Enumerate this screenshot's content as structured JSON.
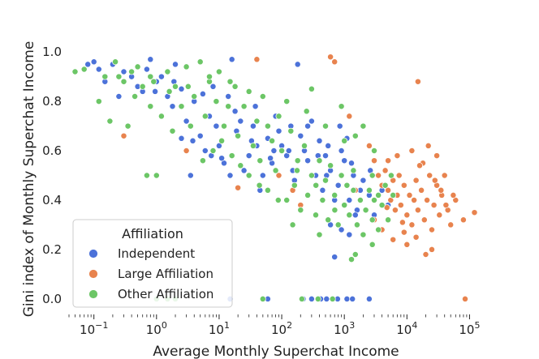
{
  "chart_data": {
    "type": "scatter",
    "xlabel": "Average Monthly Superchat Income",
    "ylabel": "Gini index of Monthly Superchat Income",
    "x_scale": "log",
    "xlim": [
      0.04,
      150000
    ],
    "ylim": [
      -0.03,
      1.03
    ],
    "x_ticks": [
      {
        "value": 0.1,
        "base": "10",
        "exp": "−1"
      },
      {
        "value": 1,
        "base": "10",
        "exp": "0"
      },
      {
        "value": 10,
        "base": "10",
        "exp": "1"
      },
      {
        "value": 100,
        "base": "10",
        "exp": "2"
      },
      {
        "value": 1000,
        "base": "10",
        "exp": "3"
      },
      {
        "value": 10000,
        "base": "10",
        "exp": "4"
      },
      {
        "value": 100000,
        "base": "10",
        "exp": "5"
      }
    ],
    "y_ticks": [
      {
        "value": 0.0,
        "label": "0.0"
      },
      {
        "value": 0.2,
        "label": "0.2"
      },
      {
        "value": 0.4,
        "label": "0.4"
      },
      {
        "value": 0.6,
        "label": "0.6"
      },
      {
        "value": 0.8,
        "label": "0.8"
      },
      {
        "value": 1.0,
        "label": "1.0"
      }
    ],
    "grid": false,
    "legend": {
      "title": "Affiliation",
      "placement": "bottom-left",
      "entries": [
        "Independent",
        "Large Affiliation",
        "Other Affiliation"
      ]
    },
    "series": [
      {
        "name": "Independent",
        "color": "#4c72d9",
        "points": [
          [
            0.08,
            0.95
          ],
          [
            0.1,
            0.96
          ],
          [
            0.12,
            0.93
          ],
          [
            0.15,
            0.88
          ],
          [
            0.2,
            0.95
          ],
          [
            0.25,
            0.82
          ],
          [
            0.3,
            0.92
          ],
          [
            0.4,
            0.9
          ],
          [
            0.5,
            0.86
          ],
          [
            0.6,
            0.84
          ],
          [
            0.7,
            0.93
          ],
          [
            0.8,
            0.97
          ],
          [
            1.0,
            0.88
          ],
          [
            1.2,
            0.9
          ],
          [
            1.5,
            0.82
          ],
          [
            1.8,
            0.78
          ],
          [
            2.0,
            0.95
          ],
          [
            2.5,
            0.85
          ],
          [
            3.0,
            0.72
          ],
          [
            3.5,
            0.5
          ],
          [
            4.0,
            0.8
          ],
          [
            5.0,
            0.66
          ],
          [
            6.0,
            0.6
          ],
          [
            7.0,
            0.74
          ],
          [
            8.0,
            0.86
          ],
          [
            9.0,
            0.7
          ],
          [
            10,
            0.62
          ],
          [
            12,
            0.55
          ],
          [
            14,
            0.82
          ],
          [
            16,
            0.97
          ],
          [
            18,
            0.76
          ],
          [
            20,
            0.66
          ],
          [
            25,
            0.52
          ],
          [
            30,
            0.58
          ],
          [
            35,
            0.7
          ],
          [
            40,
            0.62
          ],
          [
            45,
            0.44
          ],
          [
            50,
            0.5
          ],
          [
            60,
            0.65
          ],
          [
            70,
            0.55
          ],
          [
            80,
            0.74
          ],
          [
            90,
            0.68
          ],
          [
            100,
            0.62
          ],
          [
            120,
            0.58
          ],
          [
            140,
            0.7
          ],
          [
            160,
            0.48
          ],
          [
            180,
            0.95
          ],
          [
            200,
            0.66
          ],
          [
            230,
            0.6
          ],
          [
            260,
            0.56
          ],
          [
            300,
            0.72
          ],
          [
            350,
            0.5
          ],
          [
            400,
            0.64
          ],
          [
            450,
            0.44
          ],
          [
            500,
            0.58
          ],
          [
            550,
            0.62
          ],
          [
            600,
            0.52
          ],
          [
            700,
            0.4
          ],
          [
            800,
            0.46
          ],
          [
            900,
            0.6
          ],
          [
            1000,
            0.56
          ],
          [
            1200,
            0.4
          ],
          [
            1400,
            0.5
          ],
          [
            1600,
            0.36
          ],
          [
            1800,
            0.44
          ],
          [
            2000,
            0.48
          ],
          [
            2500,
            0.42
          ],
          [
            3000,
            0.34
          ],
          [
            4000,
            0.44
          ],
          [
            5000,
            0.38
          ],
          [
            7000,
            0.42
          ],
          [
            700,
            0.17
          ],
          [
            2.5,
            0.65
          ],
          [
            5.5,
            0.83
          ],
          [
            11,
            0.57
          ],
          [
            22,
            0.72
          ],
          [
            33,
            0.64
          ],
          [
            66,
            0.57
          ],
          [
            130,
            0.6
          ],
          [
            260,
            0.7
          ],
          [
            520,
            0.5
          ],
          [
            1300,
            0.55
          ],
          [
            2600,
            0.52
          ],
          [
            850,
            0.7
          ],
          [
            1100,
            0.65
          ],
          [
            380,
            0.58
          ],
          [
            150,
            0.52
          ],
          [
            75,
            0.6
          ],
          [
            38,
            0.78
          ],
          [
            19,
            0.68
          ],
          [
            0.95,
            0.84
          ],
          [
            1.9,
            0.88
          ],
          [
            3.8,
            0.64
          ],
          [
            7.5,
            0.58
          ],
          [
            15,
            0.5
          ],
          [
            600,
            0.3
          ],
          [
            900,
            0.28
          ],
          [
            1200,
            0.26
          ],
          [
            1500,
            0.34
          ],
          [
            3500,
            0.5
          ],
          [
            15,
            0
          ],
          [
            60,
            0
          ],
          [
            220,
            0
          ],
          [
            300,
            0
          ],
          [
            420,
            0
          ],
          [
            520,
            0
          ],
          [
            650,
            0
          ],
          [
            780,
            0
          ],
          [
            1100,
            0
          ],
          [
            1350,
            0
          ],
          [
            2500,
            0
          ]
        ]
      },
      {
        "name": "Large Affiliation",
        "color": "#e8834e",
        "points": [
          [
            0.3,
            0.66
          ],
          [
            40,
            0.97
          ],
          [
            600,
            0.98
          ],
          [
            700,
            0.96
          ],
          [
            15000,
            0.88
          ],
          [
            1200,
            0.74
          ],
          [
            2000,
            0.7
          ],
          [
            2500,
            0.62
          ],
          [
            3000,
            0.56
          ],
          [
            3500,
            0.5
          ],
          [
            4000,
            0.46
          ],
          [
            4500,
            0.52
          ],
          [
            5000,
            0.44
          ],
          [
            5500,
            0.4
          ],
          [
            6000,
            0.48
          ],
          [
            6500,
            0.36
          ],
          [
            7000,
            0.42
          ],
          [
            7500,
            0.5
          ],
          [
            8000,
            0.38
          ],
          [
            9000,
            0.46
          ],
          [
            10000,
            0.34
          ],
          [
            11000,
            0.42
          ],
          [
            12000,
            0.3
          ],
          [
            13000,
            0.4
          ],
          [
            14000,
            0.48
          ],
          [
            15000,
            0.36
          ],
          [
            17000,
            0.44
          ],
          [
            19000,
            0.32
          ],
          [
            21000,
            0.4
          ],
          [
            23000,
            0.5
          ],
          [
            25000,
            0.28
          ],
          [
            27000,
            0.38
          ],
          [
            30000,
            0.46
          ],
          [
            33000,
            0.34
          ],
          [
            36000,
            0.42
          ],
          [
            40000,
            0.5
          ],
          [
            45000,
            0.36
          ],
          [
            50000,
            0.3
          ],
          [
            60000,
            0.4
          ],
          [
            80000,
            0.32
          ],
          [
            120000,
            0.35
          ],
          [
            20000,
            0.18
          ],
          [
            22000,
            0.62
          ],
          [
            30000,
            0.58
          ],
          [
            18000,
            0.55
          ],
          [
            9000,
            0.27
          ],
          [
            6000,
            0.24
          ],
          [
            4000,
            0.28
          ],
          [
            3000,
            0.32
          ],
          [
            2200,
            0.36
          ],
          [
            1800,
            0.4
          ],
          [
            1500,
            0.44
          ],
          [
            5000,
            0.56
          ],
          [
            7000,
            0.58
          ],
          [
            12000,
            0.6
          ],
          [
            16000,
            0.54
          ],
          [
            28000,
            0.48
          ],
          [
            35000,
            0.44
          ],
          [
            42000,
            0.38
          ],
          [
            55000,
            0.42
          ],
          [
            200,
            0.38
          ],
          [
            150,
            0.44
          ],
          [
            90,
            0.5
          ],
          [
            20,
            0.45
          ],
          [
            3,
            0.6
          ],
          [
            10000,
            0.22
          ],
          [
            25000,
            0.2
          ],
          [
            14000,
            0.25
          ],
          [
            8500,
            0.31
          ],
          [
            4800,
            0.37
          ],
          [
            85000,
            0
          ]
        ]
      },
      {
        "name": "Other Affiliation",
        "color": "#6cc666",
        "points": [
          [
            0.05,
            0.92
          ],
          [
            0.07,
            0.93
          ],
          [
            0.12,
            0.8
          ],
          [
            0.15,
            0.9
          ],
          [
            0.18,
            0.72
          ],
          [
            0.22,
            0.96
          ],
          [
            0.3,
            0.88
          ],
          [
            0.35,
            0.7
          ],
          [
            0.4,
            0.92
          ],
          [
            0.5,
            0.94
          ],
          [
            0.6,
            0.86
          ],
          [
            0.7,
            0.5
          ],
          [
            0.8,
            0.78
          ],
          [
            0.9,
            0.88
          ],
          [
            1.0,
            0.5
          ],
          [
            1.2,
            0.74
          ],
          [
            1.5,
            0.92
          ],
          [
            1.8,
            0.68
          ],
          [
            2.0,
            0.86
          ],
          [
            2.5,
            0.78
          ],
          [
            3.0,
            0.94
          ],
          [
            3.5,
            0.7
          ],
          [
            4.0,
            0.82
          ],
          [
            5.0,
            0.96
          ],
          [
            6.0,
            0.74
          ],
          [
            7.0,
            0.88
          ],
          [
            8.0,
            0.6
          ],
          [
            9.0,
            0.8
          ],
          [
            10,
            0.92
          ],
          [
            12,
            0.7
          ],
          [
            14,
            0.78
          ],
          [
            16,
            0.58
          ],
          [
            18,
            0.86
          ],
          [
            20,
            0.66
          ],
          [
            25,
            0.78
          ],
          [
            30,
            0.5
          ],
          [
            35,
            0.62
          ],
          [
            40,
            0.72
          ],
          [
            45,
            0.56
          ],
          [
            50,
            0.82
          ],
          [
            60,
            0.44
          ],
          [
            70,
            0.64
          ],
          [
            80,
            0.52
          ],
          [
            90,
            0.74
          ],
          [
            100,
            0.6
          ],
          [
            120,
            0.4
          ],
          [
            140,
            0.68
          ],
          [
            160,
            0.46
          ],
          [
            180,
            0.56
          ],
          [
            200,
            0.36
          ],
          [
            230,
            0.62
          ],
          [
            260,
            0.42
          ],
          [
            300,
            0.5
          ],
          [
            350,
            0.34
          ],
          [
            400,
            0.56
          ],
          [
            450,
            0.4
          ],
          [
            500,
            0.48
          ],
          [
            550,
            0.32
          ],
          [
            600,
            0.54
          ],
          [
            700,
            0.42
          ],
          [
            800,
            0.3
          ],
          [
            900,
            0.5
          ],
          [
            1000,
            0.38
          ],
          [
            1100,
            0.46
          ],
          [
            1200,
            0.34
          ],
          [
            1400,
            0.44
          ],
          [
            1600,
            0.3
          ],
          [
            1800,
            0.4
          ],
          [
            2000,
            0.26
          ],
          [
            2200,
            0.36
          ],
          [
            2500,
            0.44
          ],
          [
            2800,
            0.32
          ],
          [
            3000,
            0.4
          ],
          [
            3500,
            0.28
          ],
          [
            4000,
            0.38
          ],
          [
            4500,
            0.46
          ],
          [
            5000,
            0.32
          ],
          [
            6000,
            0.42
          ],
          [
            1300,
            0.16
          ],
          [
            1500,
            0.18
          ],
          [
            2800,
            0.22
          ],
          [
            400,
            0.26
          ],
          [
            150,
            0.3
          ],
          [
            3000,
            0.6
          ],
          [
            2000,
            0.7
          ],
          [
            1000,
            0.64
          ],
          [
            500,
            0.7
          ],
          [
            250,
            0.76
          ],
          [
            120,
            0.8
          ],
          [
            60,
            0.7
          ],
          [
            30,
            0.84
          ],
          [
            15,
            0.88
          ],
          [
            7,
            0.9
          ],
          [
            3.2,
            0.86
          ],
          [
            1.6,
            0.84
          ],
          [
            0.8,
            0.9
          ],
          [
            0.45,
            0.82
          ],
          [
            0.25,
            0.9
          ],
          [
            5.5,
            0.56
          ],
          [
            11,
            0.64
          ],
          [
            22,
            0.54
          ],
          [
            44,
            0.46
          ],
          [
            88,
            0.4
          ],
          [
            176,
            0.52
          ],
          [
            352,
            0.46
          ],
          [
            704,
            0.36
          ],
          [
            1400,
            0.52
          ],
          [
            2800,
            0.5
          ],
          [
            5600,
            0.5
          ],
          [
            300,
            0.85
          ],
          [
            900,
            0.78
          ],
          [
            1500,
            0.66
          ],
          [
            3500,
            0.42
          ],
          [
            1.0,
            0
          ],
          [
            1.5,
            0
          ],
          [
            2.0,
            0
          ],
          [
            50,
            0
          ],
          [
            210,
            0
          ],
          [
            380,
            0
          ],
          [
            650,
            0
          ]
        ]
      }
    ]
  }
}
